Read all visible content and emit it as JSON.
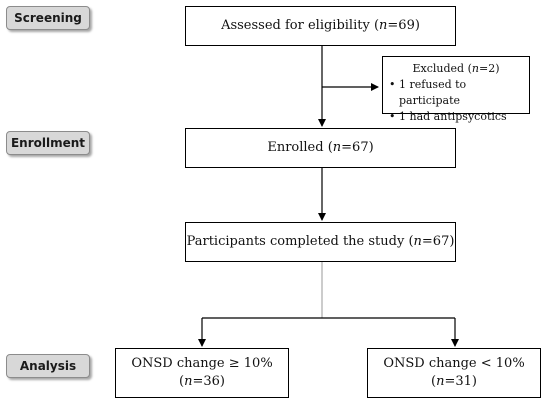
{
  "stages": {
    "screening": "Screening",
    "enrollment": "Enrollment",
    "analysis": "Analysis"
  },
  "assessed": {
    "text": "Assessed for eligibility (",
    "n_label": "n",
    "n_value": "=69)"
  },
  "excluded": {
    "title_text": "Excluded (",
    "n_label": "n",
    "n_value": "=2)",
    "items": [
      "1 refused to participate",
      "1 had antipsycotics"
    ]
  },
  "enrolled": {
    "text": "Enrolled (",
    "n_label": "n",
    "n_value": "=67)"
  },
  "completed": {
    "text": "Participants completed the study (",
    "n_label": "n",
    "n_value": "=67)"
  },
  "group_high": {
    "line1": "ONSD change ≥ 10%",
    "open": "(",
    "n_label": "n",
    "n_value": "=36)"
  },
  "group_low": {
    "line1": "ONSD change < 10%",
    "open": "(",
    "n_label": "n",
    "n_value": "=31)"
  }
}
